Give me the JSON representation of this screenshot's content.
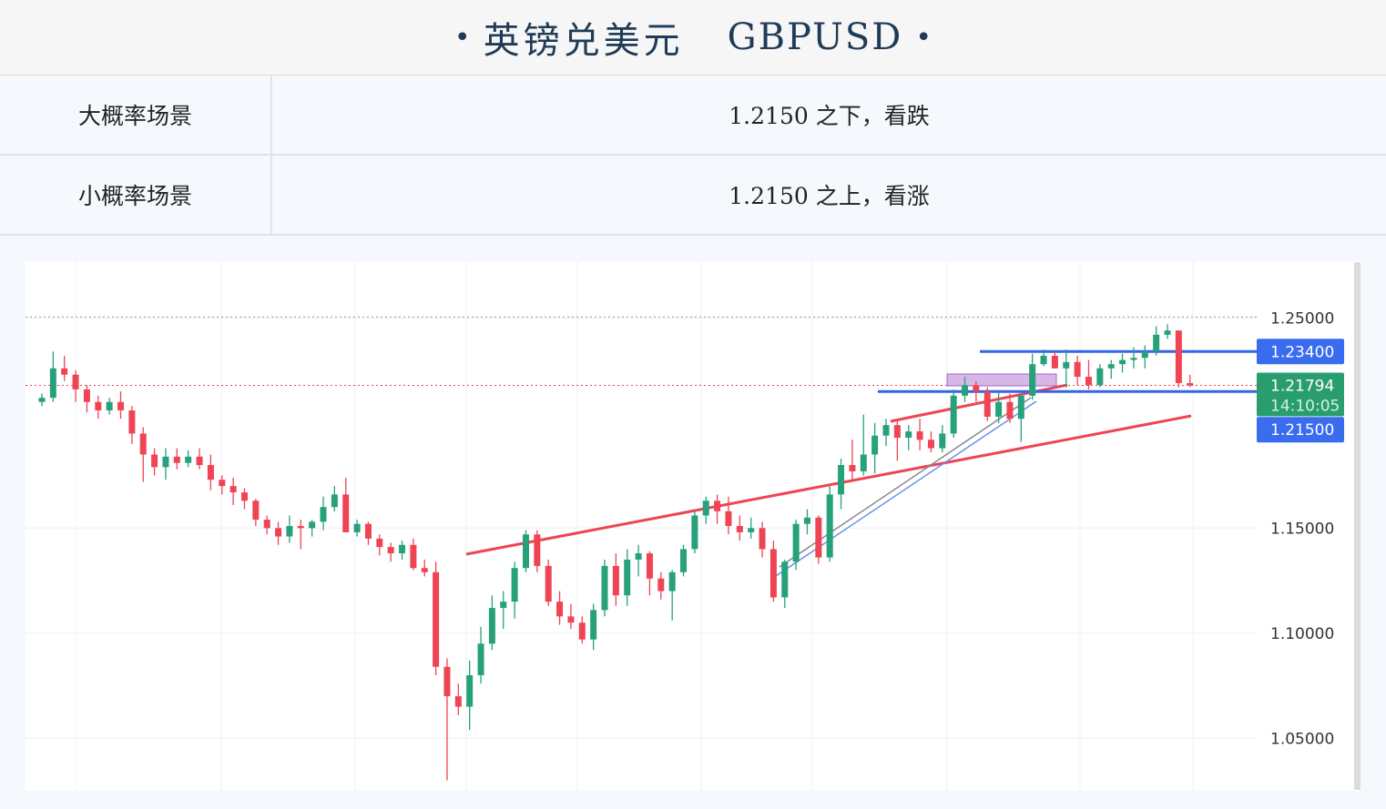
{
  "header": {
    "title_cn": "英镑兑美元",
    "title_en": "GBPUSD",
    "bullet_left": "•",
    "bullet_right": "•"
  },
  "scenarios": [
    {
      "label": "大概率场景",
      "text": "1.2150 之下，看跌"
    },
    {
      "label": "小概率场景",
      "text": "1.2150 之上，看涨"
    }
  ],
  "colors": {
    "bull": "#26a17b",
    "bear": "#ef4453",
    "trendline": "#ef4453",
    "level_line": "#3465e8",
    "price_tag": "#2a9d6f",
    "grid": "#eef0f3"
  },
  "chart_data": {
    "type": "candlestick",
    "ylim": [
      1.025,
      1.277
    ],
    "y_ticks": [
      "1.25000",
      "1.15000",
      "1.10000",
      "1.05000"
    ],
    "y_tick_values": [
      1.25,
      1.15,
      1.1,
      1.05
    ],
    "current_price": "1.21794",
    "countdown": "14:10:05",
    "levels": [
      {
        "label": "1.23400",
        "value": 1.234
      },
      {
        "label": "1.21500",
        "value": 1.215
      }
    ],
    "candles": [
      [
        1.21,
        1.214,
        1.208,
        1.212
      ],
      [
        1.212,
        1.234,
        1.21,
        1.226
      ],
      [
        1.226,
        1.232,
        1.22,
        1.223
      ],
      [
        1.223,
        1.225,
        1.21,
        1.216
      ],
      [
        1.216,
        1.218,
        1.205,
        1.21
      ],
      [
        1.21,
        1.213,
        1.202,
        1.206
      ],
      [
        1.206,
        1.212,
        1.204,
        1.21
      ],
      [
        1.21,
        1.215,
        1.202,
        1.206
      ],
      [
        1.206,
        1.208,
        1.19,
        1.195
      ],
      [
        1.195,
        1.198,
        1.172,
        1.185
      ],
      [
        1.185,
        1.188,
        1.175,
        1.179
      ],
      [
        1.179,
        1.188,
        1.173,
        1.184
      ],
      [
        1.184,
        1.188,
        1.178,
        1.181
      ],
      [
        1.181,
        1.187,
        1.179,
        1.184
      ],
      [
        1.184,
        1.188,
        1.178,
        1.18
      ],
      [
        1.18,
        1.185,
        1.168,
        1.173
      ],
      [
        1.173,
        1.175,
        1.166,
        1.17
      ],
      [
        1.17,
        1.174,
        1.161,
        1.167
      ],
      [
        1.167,
        1.169,
        1.159,
        1.163
      ],
      [
        1.163,
        1.164,
        1.151,
        1.154
      ],
      [
        1.154,
        1.156,
        1.147,
        1.15
      ],
      [
        1.15,
        1.153,
        1.142,
        1.146
      ],
      [
        1.146,
        1.156,
        1.143,
        1.151
      ],
      [
        1.151,
        1.154,
        1.14,
        1.15
      ],
      [
        1.15,
        1.154,
        1.146,
        1.153
      ],
      [
        1.153,
        1.165,
        1.149,
        1.16
      ],
      [
        1.16,
        1.17,
        1.158,
        1.166
      ],
      [
        1.166,
        1.174,
        1.148,
        1.148
      ],
      [
        1.148,
        1.154,
        1.146,
        1.152
      ],
      [
        1.152,
        1.153,
        1.142,
        1.145
      ],
      [
        1.145,
        1.147,
        1.137,
        1.141
      ],
      [
        1.141,
        1.143,
        1.134,
        1.138
      ],
      [
        1.138,
        1.144,
        1.135,
        1.142
      ],
      [
        1.142,
        1.145,
        1.13,
        1.131
      ],
      [
        1.131,
        1.135,
        1.127,
        1.129
      ],
      [
        1.129,
        1.134,
        1.08,
        1.084
      ],
      [
        1.084,
        1.088,
        1.03,
        1.07
      ],
      [
        1.07,
        1.076,
        1.061,
        1.065
      ],
      [
        1.065,
        1.087,
        1.054,
        1.08
      ],
      [
        1.08,
        1.103,
        1.076,
        1.095
      ],
      [
        1.095,
        1.118,
        1.092,
        1.112
      ],
      [
        1.112,
        1.12,
        1.102,
        1.115
      ],
      [
        1.115,
        1.134,
        1.107,
        1.131
      ],
      [
        1.131,
        1.149,
        1.129,
        1.147
      ],
      [
        1.147,
        1.149,
        1.129,
        1.132
      ],
      [
        1.132,
        1.135,
        1.113,
        1.115
      ],
      [
        1.115,
        1.12,
        1.104,
        1.108
      ],
      [
        1.108,
        1.114,
        1.102,
        1.105
      ],
      [
        1.105,
        1.108,
        1.095,
        1.097
      ],
      [
        1.097,
        1.114,
        1.092,
        1.111
      ],
      [
        1.111,
        1.135,
        1.108,
        1.132
      ],
      [
        1.132,
        1.138,
        1.113,
        1.118
      ],
      [
        1.118,
        1.14,
        1.113,
        1.135
      ],
      [
        1.135,
        1.142,
        1.127,
        1.138
      ],
      [
        1.138,
        1.139,
        1.118,
        1.126
      ],
      [
        1.126,
        1.129,
        1.116,
        1.12
      ],
      [
        1.12,
        1.13,
        1.106,
        1.129
      ],
      [
        1.129,
        1.142,
        1.127,
        1.14
      ],
      [
        1.14,
        1.158,
        1.138,
        1.156
      ],
      [
        1.156,
        1.165,
        1.152,
        1.163
      ],
      [
        1.163,
        1.166,
        1.152,
        1.158
      ],
      [
        1.158,
        1.165,
        1.147,
        1.151
      ],
      [
        1.151,
        1.156,
        1.144,
        1.148
      ],
      [
        1.148,
        1.155,
        1.145,
        1.15
      ],
      [
        1.15,
        1.153,
        1.136,
        1.14
      ],
      [
        1.14,
        1.144,
        1.115,
        1.117
      ],
      [
        1.117,
        1.135,
        1.112,
        1.134
      ],
      [
        1.134,
        1.154,
        1.13,
        1.152
      ],
      [
        1.152,
        1.159,
        1.147,
        1.155
      ],
      [
        1.155,
        1.156,
        1.133,
        1.136
      ],
      [
        1.136,
        1.17,
        1.134,
        1.166
      ],
      [
        1.166,
        1.183,
        1.159,
        1.18
      ],
      [
        1.18,
        1.192,
        1.173,
        1.177
      ],
      [
        1.177,
        1.204,
        1.175,
        1.185
      ],
      [
        1.185,
        1.2,
        1.176,
        1.194
      ],
      [
        1.194,
        1.202,
        1.189,
        1.199
      ],
      [
        1.199,
        1.201,
        1.182,
        1.193
      ],
      [
        1.193,
        1.199,
        1.187,
        1.196
      ],
      [
        1.196,
        1.202,
        1.187,
        1.192
      ],
      [
        1.192,
        1.196,
        1.186,
        1.188
      ],
      [
        1.188,
        1.199,
        1.186,
        1.195
      ],
      [
        1.195,
        1.216,
        1.193,
        1.213
      ],
      [
        1.213,
        1.222,
        1.21,
        1.218
      ],
      [
        1.218,
        1.22,
        1.21,
        1.215
      ],
      [
        1.215,
        1.217,
        1.201,
        1.203
      ],
      [
        1.203,
        1.215,
        1.2,
        1.21
      ],
      [
        1.21,
        1.214,
        1.2,
        1.202
      ],
      [
        1.202,
        1.214,
        1.191,
        1.213
      ],
      [
        1.213,
        1.233,
        1.211,
        1.228
      ],
      [
        1.228,
        1.235,
        1.227,
        1.232
      ],
      [
        1.232,
        1.234,
        1.226,
        1.226
      ],
      [
        1.226,
        1.235,
        1.217,
        1.229
      ],
      [
        1.229,
        1.232,
        1.218,
        1.222
      ],
      [
        1.222,
        1.23,
        1.216,
        1.218
      ],
      [
        1.218,
        1.228,
        1.217,
        1.226
      ],
      [
        1.226,
        1.23,
        1.221,
        1.228
      ],
      [
        1.228,
        1.233,
        1.224,
        1.23
      ],
      [
        1.23,
        1.236,
        1.226,
        1.231
      ],
      [
        1.231,
        1.237,
        1.226,
        1.234
      ],
      [
        1.234,
        1.246,
        1.232,
        1.242
      ],
      [
        1.242,
        1.247,
        1.24,
        1.244
      ],
      [
        1.244,
        1.244,
        1.217,
        1.219
      ],
      [
        1.219,
        1.223,
        1.217,
        1.2179
      ]
    ]
  }
}
